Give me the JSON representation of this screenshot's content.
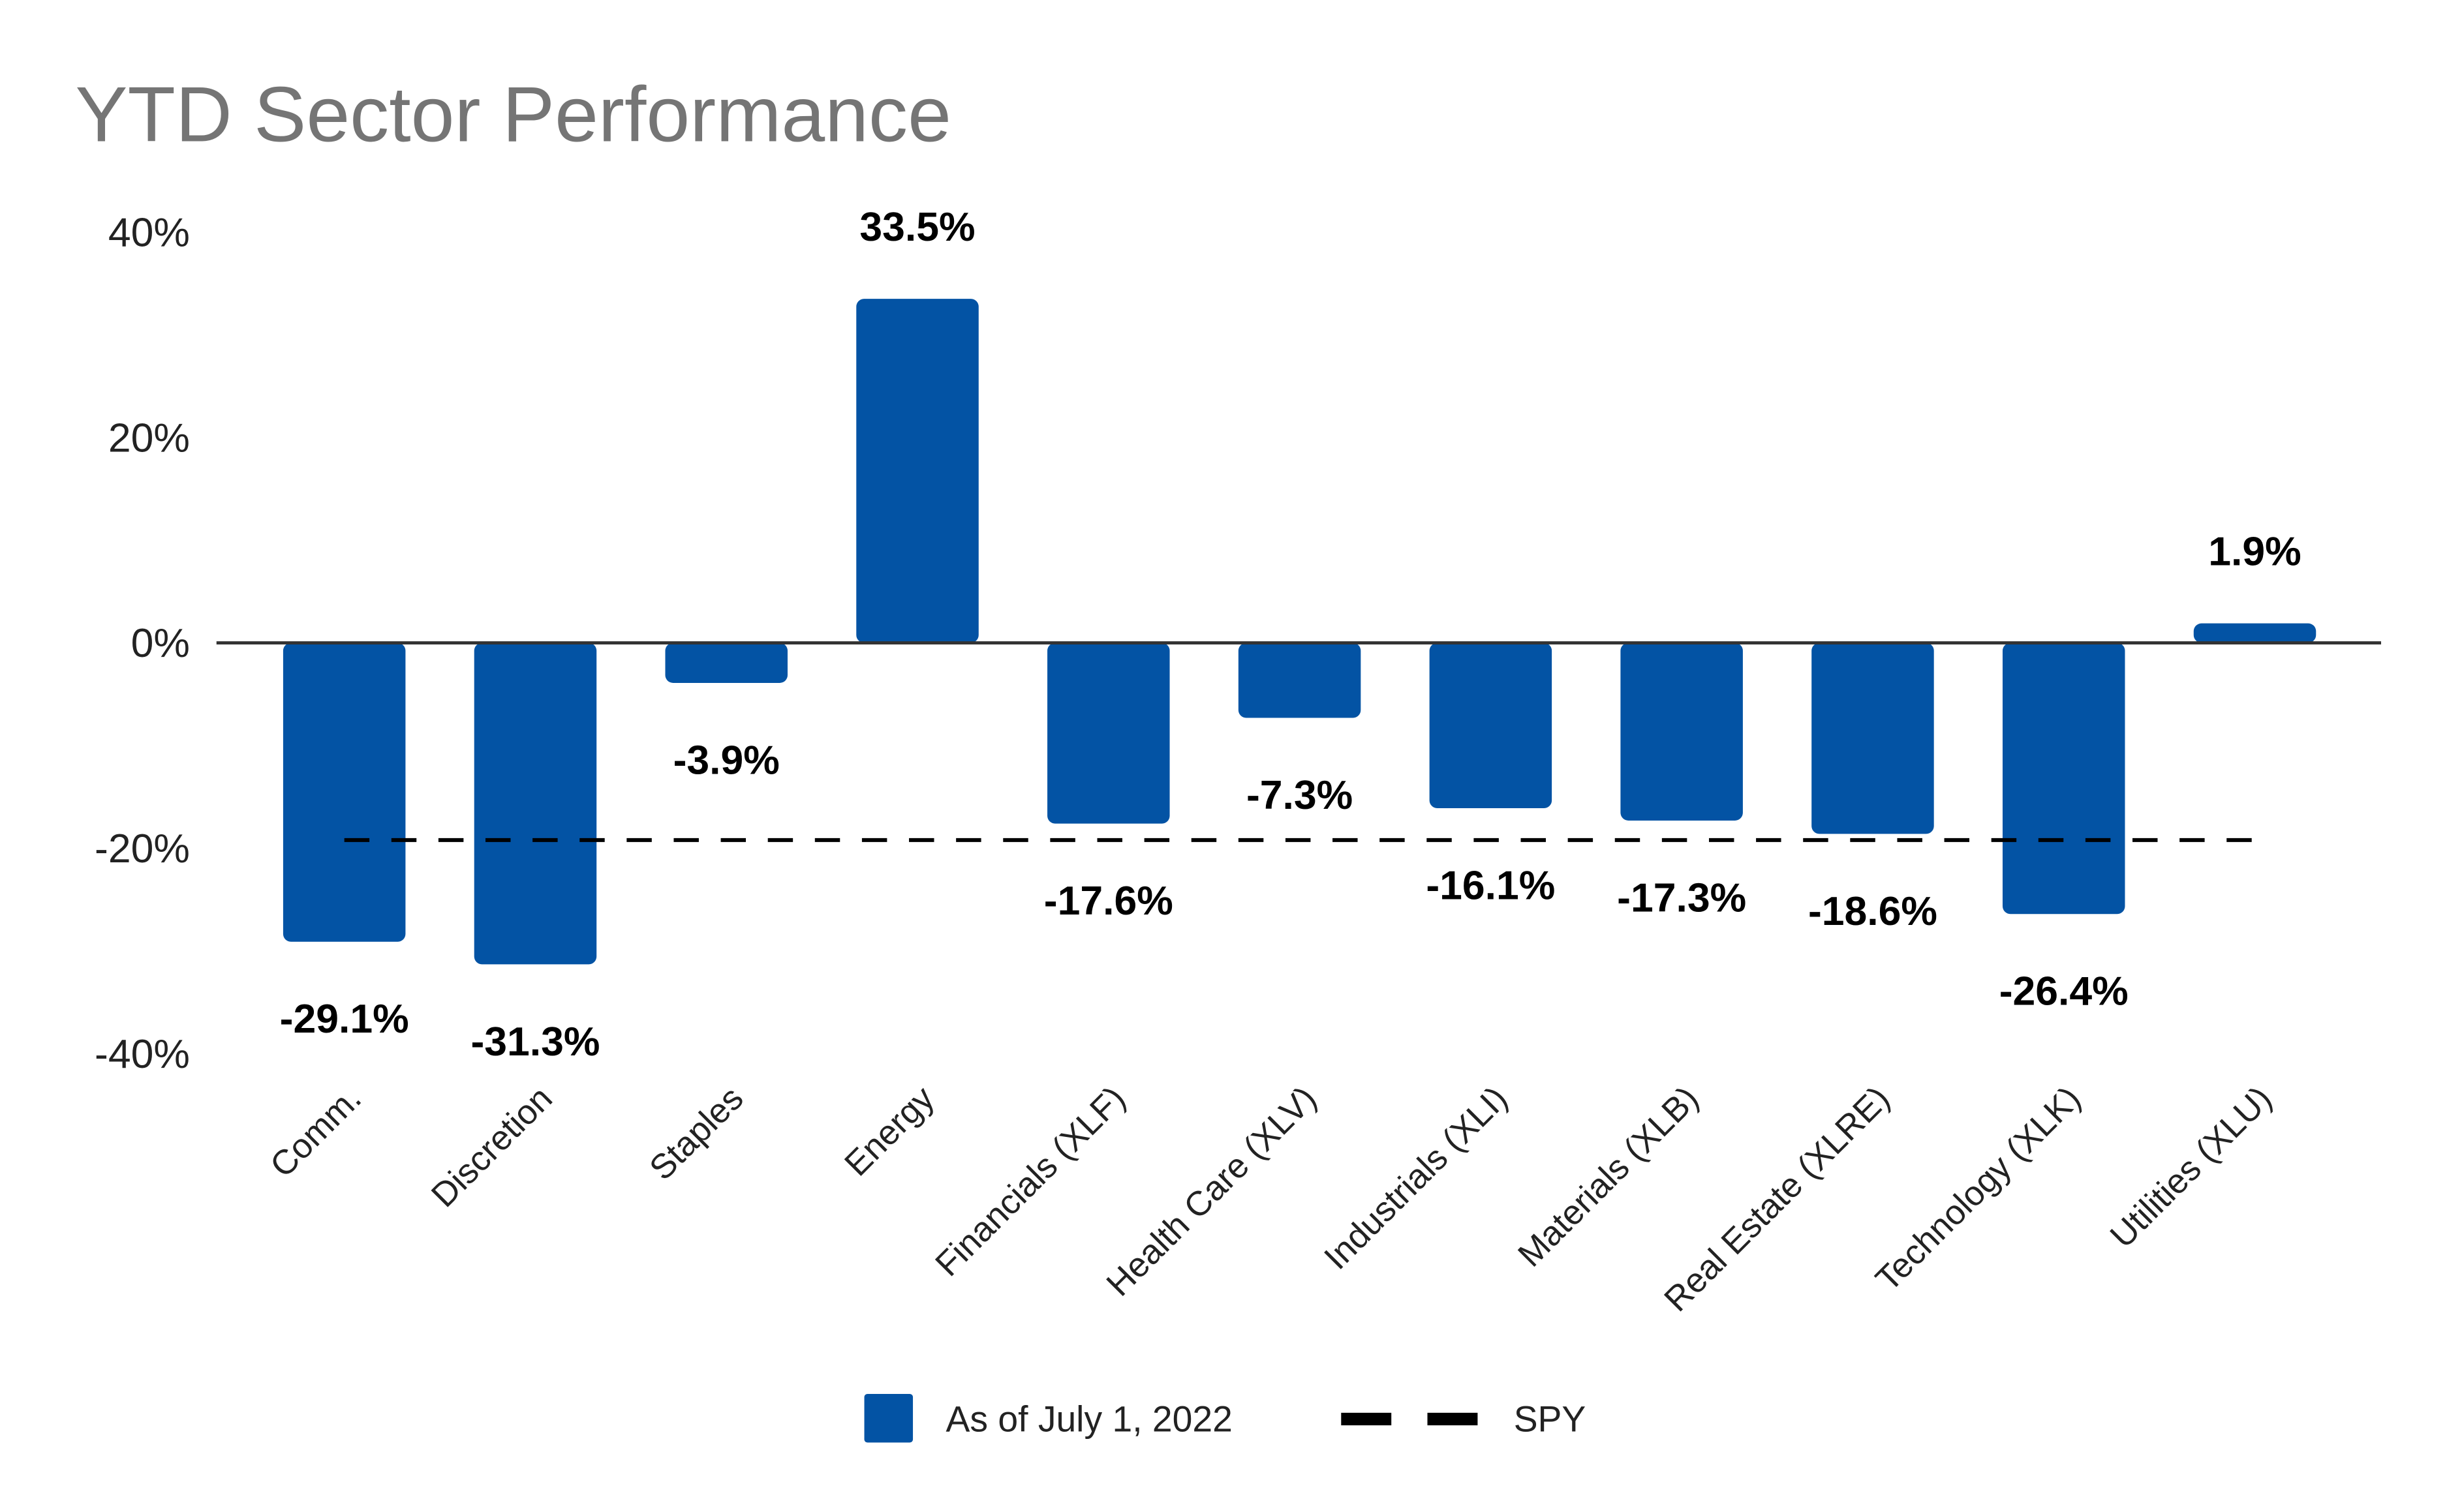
{
  "chart_data": {
    "type": "bar",
    "title": "YTD Sector Performance",
    "xlabel": "",
    "ylabel": "",
    "ylim": [
      -40,
      40
    ],
    "yticks": [
      40,
      20,
      0,
      -20,
      -40
    ],
    "ytick_labels": [
      "40%",
      "20%",
      "0%",
      "-20%",
      "-40%"
    ],
    "grid": false,
    "legend_position": "bottom",
    "categories": [
      "Comm.",
      "Discretion",
      "Staples",
      "Energy",
      "Financials (XLF)",
      "Health Care (XLV)",
      "Industrials (XLI)",
      "Materials (XLB)",
      "Real Estate (XLRE)",
      "Technology (XLK)",
      "Utilities (XLU)"
    ],
    "series": [
      {
        "name": "As of July 1, 2022",
        "color": "#0353A4",
        "values": [
          -29.1,
          -31.3,
          -3.9,
          33.5,
          -17.6,
          -7.3,
          -16.1,
          -17.3,
          -18.6,
          -26.4,
          1.9
        ],
        "data_labels": [
          "-29.1%",
          "-31.3%",
          "-3.9%",
          "33.5%",
          "-17.6%",
          "-7.3%",
          "-16.1%",
          "-17.3%",
          "-18.6%",
          "-26.4%",
          "1.9%"
        ]
      }
    ],
    "reference_line": {
      "name": "SPY",
      "value": -19.2,
      "style": "dashed",
      "color": "#000000"
    }
  }
}
